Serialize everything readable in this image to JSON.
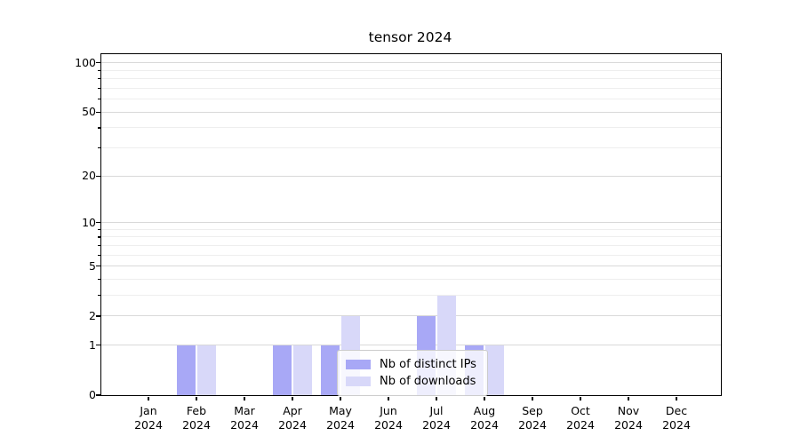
{
  "chart_data": {
    "type": "bar",
    "title": "tensor 2024",
    "categories": [
      "Jan",
      "Feb",
      "Mar",
      "Apr",
      "May",
      "Jun",
      "Jul",
      "Aug",
      "Sep",
      "Oct",
      "Nov",
      "Dec"
    ],
    "year_label": "2024",
    "series": [
      {
        "name": "Nb of distinct IPs",
        "color": "#a8a8f6",
        "values": [
          0,
          1,
          0,
          1,
          1,
          0,
          2,
          1,
          0,
          0,
          0,
          0
        ]
      },
      {
        "name": "Nb of downloads",
        "color": "#d8d8f9",
        "values": [
          0,
          1,
          0,
          1,
          2,
          0,
          3,
          1,
          0,
          0,
          0,
          0
        ]
      }
    ],
    "yscale": "log1p",
    "ymax_value": 113,
    "yticks": [
      0,
      1,
      2,
      5,
      10,
      20,
      50,
      100
    ],
    "minor_gridlines": [
      3,
      4,
      6,
      7,
      8,
      9,
      30,
      40,
      60,
      70,
      80,
      90
    ],
    "grid": true,
    "legend_position": "lower center",
    "axis_color": "#000000"
  }
}
